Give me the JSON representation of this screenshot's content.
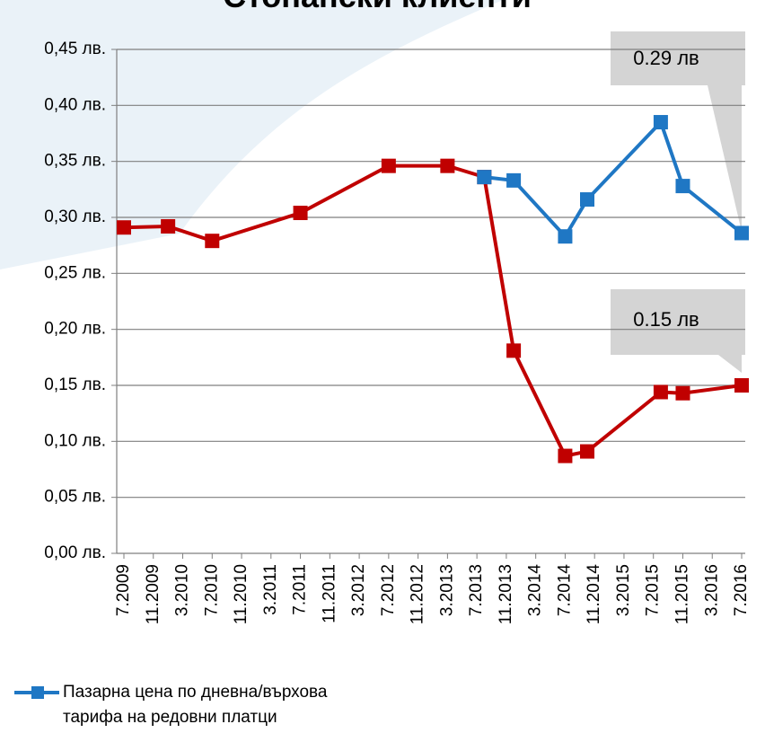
{
  "chart_data": {
    "type": "line",
    "title": "Стопански клиенти",
    "xticks": [
      "7.2009",
      "11.2009",
      "3.2010",
      "7.2010",
      "11.2010",
      "3.2011",
      "7.2011",
      "11.2011",
      "3.2012",
      "7.2012",
      "11.2012",
      "3.2013",
      "7.2013",
      "11.2013",
      "3.2014",
      "7.2014",
      "11.2014",
      "3.2015",
      "7.2015",
      "11.2015",
      "3.2016",
      "7.2016"
    ],
    "xlim": [
      "7.2009",
      "7.2016"
    ],
    "ylim": [
      0,
      0.45
    ],
    "yticks": [
      {
        "value": 0,
        "label": "0,00 лв."
      },
      {
        "value": 0.05,
        "label": "0,05 лв."
      },
      {
        "value": 0.1,
        "label": "0,10 лв."
      },
      {
        "value": 0.15,
        "label": "0,15 лв."
      },
      {
        "value": 0.2,
        "label": "0,20 лв."
      },
      {
        "value": 0.25,
        "label": "0,25 лв."
      },
      {
        "value": 0.3,
        "label": "0,30 лв."
      },
      {
        "value": 0.35,
        "label": "0,35 лв."
      },
      {
        "value": 0.4,
        "label": "0,40 лв."
      },
      {
        "value": 0.45,
        "label": "0,45 лв."
      }
    ],
    "grid": true,
    "series": [
      {
        "color": "#c00000",
        "x": [
          "7.2009",
          "1.2010",
          "7.2010",
          "7.2011",
          "7.2012",
          "3.2013",
          "8.2013",
          "12.2013",
          "7.2014",
          "10.2014",
          "8.2015",
          "11.2015",
          "7.2016"
        ],
        "values": [
          0.291,
          0.292,
          0.279,
          0.304,
          0.346,
          0.346,
          0.336,
          0.181,
          0.087,
          0.091,
          0.144,
          0.143,
          0.15
        ]
      },
      {
        "name": "Пазарна цена по дневна/върхова тарифа на редовни платци",
        "color": "#1f77c4",
        "x": [
          "8.2013",
          "12.2013",
          "7.2014",
          "10.2014",
          "8.2015",
          "11.2015",
          "7.2016"
        ],
        "values": [
          0.336,
          0.333,
          0.283,
          0.316,
          0.385,
          0.328,
          0.286
        ]
      }
    ],
    "annotations": [
      "0.29 лв",
      "0.15 лв"
    ]
  }
}
